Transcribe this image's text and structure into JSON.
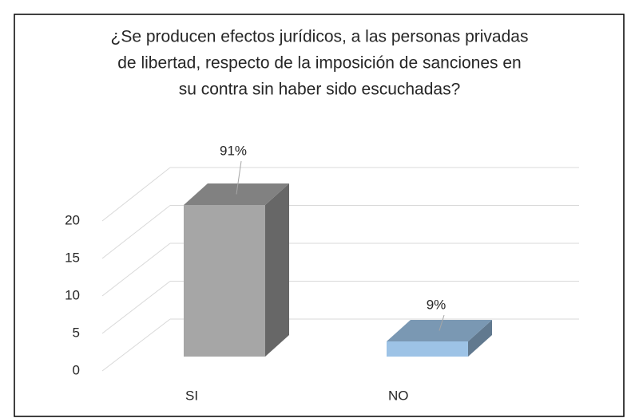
{
  "chart_data": {
    "type": "bar3d",
    "title": [
      "¿Se producen efectos jurídicos, a las personas privadas",
      "de libertad, respecto de la imposición de sanciones en",
      "su contra sin haber sido escuchadas?"
    ],
    "categories": [
      "SI",
      "NO"
    ],
    "values": [
      20,
      2
    ],
    "shares": [
      91,
      9
    ],
    "share_labels": [
      "91%",
      "9%"
    ],
    "colors": [
      "#a6a6a6",
      "#9dc3e6"
    ],
    "ylim": [
      0,
      20
    ],
    "yticks": [
      0,
      5,
      10,
      15,
      20
    ],
    "grid": true
  }
}
